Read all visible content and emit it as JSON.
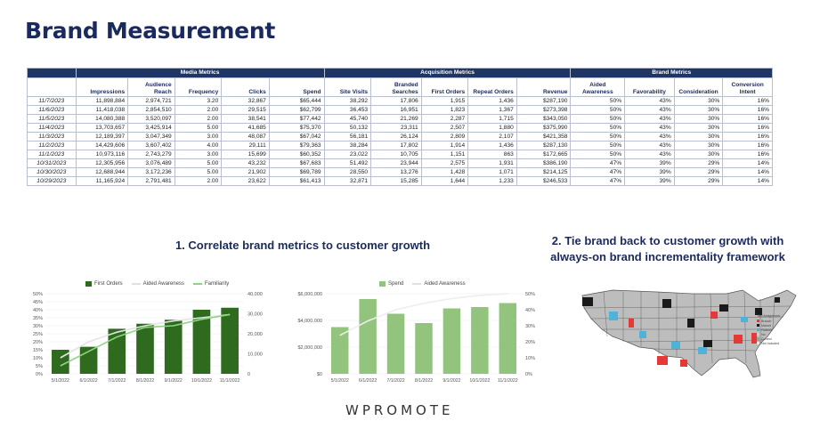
{
  "page": {
    "title": "Brand Measurement",
    "footer_logo": "WPROMOTE"
  },
  "table": {
    "groups": [
      {
        "label": "",
        "span": 1
      },
      {
        "label": "Media Metrics",
        "span": 5
      },
      {
        "label": "Acquisition Metrics",
        "span": 5
      },
      {
        "label": "Brand Metrics",
        "span": 4
      }
    ],
    "columns": [
      "",
      "Impressions",
      "Audience Reach",
      "Frequency",
      "Clicks",
      "Spend",
      "Site Visits",
      "Branded Searches",
      "First Orders",
      "Repeat Orders",
      "Revenue",
      "Aided Awareness",
      "Favorability",
      "Consideration",
      "Conversion Intent"
    ],
    "rows": [
      [
        "11/7/2023",
        "11,898,884",
        "2,974,721",
        "3.20",
        "32,867",
        "$65,444",
        "38,292",
        "17,806",
        "1,915",
        "1,436",
        "$287,190",
        "50%",
        "43%",
        "30%",
        "16%"
      ],
      [
        "11/6/2023",
        "11,418,038",
        "2,854,510",
        "2.00",
        "29,515",
        "$62,799",
        "36,453",
        "16,951",
        "1,823",
        "1,367",
        "$273,398",
        "50%",
        "43%",
        "30%",
        "16%"
      ],
      [
        "11/5/2023",
        "14,080,388",
        "3,520,097",
        "2.00",
        "38,541",
        "$77,442",
        "45,740",
        "21,269",
        "2,287",
        "1,715",
        "$343,050",
        "50%",
        "43%",
        "30%",
        "16%"
      ],
      [
        "11/4/2023",
        "13,703,657",
        "3,425,914",
        "5.00",
        "41,685",
        "$75,370",
        "50,132",
        "23,311",
        "2,507",
        "1,880",
        "$375,990",
        "50%",
        "43%",
        "30%",
        "16%"
      ],
      [
        "11/3/2023",
        "12,189,397",
        "3,047,349",
        "3.00",
        "48,087",
        "$67,042",
        "56,181",
        "26,124",
        "2,809",
        "2,107",
        "$421,358",
        "50%",
        "43%",
        "30%",
        "16%"
      ],
      [
        "11/2/2023",
        "14,429,606",
        "3,607,402",
        "4.00",
        "29,111",
        "$79,363",
        "38,284",
        "17,802",
        "1,914",
        "1,436",
        "$287,130",
        "50%",
        "43%",
        "30%",
        "16%"
      ],
      [
        "11/1/2023",
        "10,973,116",
        "2,743,279",
        "3.00",
        "15,699",
        "$60,352",
        "23,022",
        "10,705",
        "1,151",
        "863",
        "$172,665",
        "50%",
        "43%",
        "30%",
        "16%"
      ],
      [
        "10/31/2023",
        "12,305,956",
        "3,076,489",
        "5.00",
        "43,232",
        "$67,683",
        "51,492",
        "23,944",
        "2,575",
        "1,931",
        "$386,190",
        "47%",
        "39%",
        "29%",
        "14%"
      ],
      [
        "10/30/2023",
        "12,688,944",
        "3,172,236",
        "5.00",
        "21,902",
        "$69,789",
        "28,550",
        "13,276",
        "1,428",
        "1,071",
        "$214,125",
        "47%",
        "39%",
        "29%",
        "14%"
      ],
      [
        "10/29/2023",
        "11,165,924",
        "2,791,481",
        "2.00",
        "23,622",
        "$61,413",
        "32,871",
        "15,285",
        "1,644",
        "1,233",
        "$246,533",
        "47%",
        "39%",
        "29%",
        "14%"
      ]
    ]
  },
  "section1": {
    "heading": "1. Correlate brand metrics to customer growth"
  },
  "section2": {
    "heading_line1": "2. Tie brand back to customer growth with",
    "heading_line2": "always-on brand incrementality framework"
  },
  "colors": {
    "navy": "#1f3566",
    "title": "#1b2a5c",
    "dark_green": "#2e6b1f",
    "light_green": "#93c47d",
    "line_green": "#8fd486",
    "aided_line": "#e4e4e4"
  },
  "chart_data": [
    {
      "type": "bar",
      "legend": [
        "First Orders",
        "Aided Awareness",
        "Familiarity"
      ],
      "categories": [
        "5/1/2022",
        "6/1/2022",
        "7/1/2022",
        "8/1/2022",
        "9/1/2022",
        "10/1/2022",
        "11/1/2022"
      ],
      "series": [
        {
          "name": "First Orders",
          "type": "bar",
          "axis": "right",
          "values": [
            12000,
            13500,
            22500,
            25000,
            27000,
            32000,
            33000
          ]
        },
        {
          "name": "Aided Awareness",
          "type": "line",
          "axis": "left",
          "values": [
            10,
            20,
            26,
            30,
            33,
            35,
            37
          ]
        },
        {
          "name": "Familiarity",
          "type": "line",
          "axis": "left",
          "values": [
            5,
            14,
            23,
            29,
            30,
            34,
            37
          ]
        }
      ],
      "left_axis": {
        "ticks": [
          "0%",
          "5%",
          "10%",
          "15%",
          "20%",
          "25%",
          "30%",
          "35%",
          "40%",
          "45%",
          "50%"
        ],
        "range": [
          0,
          50
        ]
      },
      "right_axis": {
        "ticks": [
          "0",
          "10,000",
          "20,000",
          "30,000",
          "40,000"
        ],
        "range": [
          0,
          40000
        ]
      }
    },
    {
      "type": "bar",
      "legend": [
        "Spend",
        "Aided Awareness"
      ],
      "categories": [
        "5/1/2022",
        "6/1/2022",
        "7/1/2022",
        "8/1/2022",
        "9/1/2022",
        "10/1/2022",
        "11/1/2022"
      ],
      "series": [
        {
          "name": "Spend",
          "type": "bar",
          "axis": "left",
          "values": [
            3500000,
            5600000,
            4500000,
            3800000,
            4900000,
            5000000,
            5300000
          ]
        },
        {
          "name": "Aided Awareness",
          "type": "line",
          "axis": "right",
          "values": [
            24,
            33,
            40,
            44,
            47,
            49,
            50
          ]
        }
      ],
      "left_axis": {
        "ticks": [
          "$0",
          "$2,000,000",
          "$4,000,000",
          "$6,000,000"
        ],
        "range": [
          0,
          6000000
        ]
      },
      "right_axis": {
        "ticks": [
          "0%",
          "10%",
          "20%",
          "30%",
          "40%",
          "50%"
        ],
        "range": [
          0,
          50
        ]
      }
    }
  ],
  "map": {
    "legend_title": "Test Assignment",
    "legend_items": [
      "Branch",
      "Market",
      "Holdout",
      "No",
      "Control",
      "Not Included"
    ],
    "legend_colors": [
      "#e53935",
      "#1a1a1a",
      "#4fb3d9",
      "#cfcfcf",
      "#9e9e9e",
      "#ffffff"
    ]
  }
}
